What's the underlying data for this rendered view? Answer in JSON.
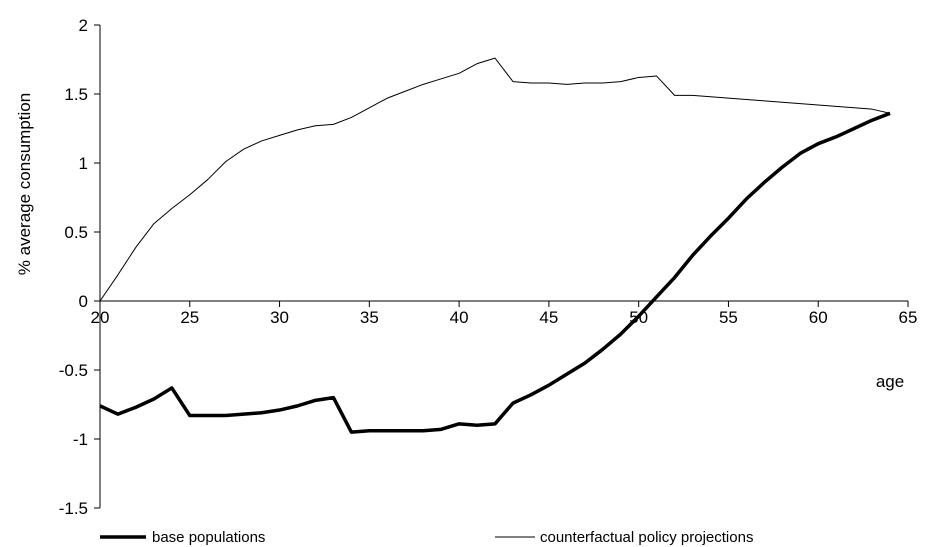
{
  "chart_data": {
    "type": "line",
    "title": "",
    "xlabel": "age",
    "ylabel": "% average consumption",
    "xlim": [
      20,
      65
    ],
    "ylim": [
      -1.5,
      2
    ],
    "x_ticks": [
      "20",
      "25",
      "30",
      "35",
      "40",
      "45",
      "50",
      "55",
      "60",
      "65"
    ],
    "y_ticks": [
      "-1.5",
      "-1",
      "-0.5",
      "0",
      "0.5",
      "1",
      "1.5",
      "2"
    ],
    "grid": false,
    "legend_position": "bottom",
    "series": [
      {
        "name": "base populations",
        "color": "#000000",
        "style": "thick",
        "points": [
          [
            20,
            -0.76
          ],
          [
            21,
            -0.82
          ],
          [
            22,
            -0.77
          ],
          [
            23,
            -0.71
          ],
          [
            24,
            -0.63
          ],
          [
            25,
            -0.83
          ],
          [
            26,
            -0.83
          ],
          [
            27,
            -0.83
          ],
          [
            28,
            -0.82
          ],
          [
            29,
            -0.81
          ],
          [
            30,
            -0.79
          ],
          [
            31,
            -0.76
          ],
          [
            32,
            -0.72
          ],
          [
            33,
            -0.7
          ],
          [
            34,
            -0.95
          ],
          [
            35,
            -0.94
          ],
          [
            36,
            -0.94
          ],
          [
            37,
            -0.94
          ],
          [
            38,
            -0.94
          ],
          [
            39,
            -0.93
          ],
          [
            40,
            -0.89
          ],
          [
            41,
            -0.9
          ],
          [
            42,
            -0.89
          ],
          [
            43,
            -0.74
          ],
          [
            44,
            -0.68
          ],
          [
            45,
            -0.61
          ],
          [
            46,
            -0.53
          ],
          [
            47,
            -0.45
          ],
          [
            48,
            -0.35
          ],
          [
            49,
            -0.24
          ],
          [
            50,
            -0.11
          ],
          [
            51,
            0.03
          ],
          [
            52,
            0.17
          ],
          [
            53,
            0.33
          ],
          [
            54,
            0.47
          ],
          [
            55,
            0.6
          ],
          [
            56,
            0.74
          ],
          [
            57,
            0.86
          ],
          [
            58,
            0.97
          ],
          [
            59,
            1.07
          ],
          [
            60,
            1.14
          ],
          [
            61,
            1.19
          ],
          [
            62,
            1.25
          ],
          [
            63,
            1.31
          ],
          [
            64,
            1.36
          ]
        ]
      },
      {
        "name": "counterfactual policy projections",
        "color": "#000000",
        "style": "thin",
        "points": [
          [
            20,
            0.0
          ],
          [
            21,
            0.19
          ],
          [
            22,
            0.39
          ],
          [
            23,
            0.56
          ],
          [
            24,
            0.67
          ],
          [
            25,
            0.77
          ],
          [
            26,
            0.88
          ],
          [
            27,
            1.01
          ],
          [
            28,
            1.1
          ],
          [
            29,
            1.16
          ],
          [
            30,
            1.2
          ],
          [
            31,
            1.24
          ],
          [
            32,
            1.27
          ],
          [
            33,
            1.28
          ],
          [
            34,
            1.33
          ],
          [
            35,
            1.4
          ],
          [
            36,
            1.47
          ],
          [
            37,
            1.52
          ],
          [
            38,
            1.57
          ],
          [
            39,
            1.61
          ],
          [
            40,
            1.65
          ],
          [
            41,
            1.72
          ],
          [
            42,
            1.76
          ],
          [
            43,
            1.59
          ],
          [
            44,
            1.58
          ],
          [
            45,
            1.58
          ],
          [
            46,
            1.57
          ],
          [
            47,
            1.58
          ],
          [
            48,
            1.58
          ],
          [
            49,
            1.59
          ],
          [
            50,
            1.62
          ],
          [
            51,
            1.63
          ],
          [
            52,
            1.49
          ],
          [
            53,
            1.49
          ],
          [
            54,
            1.48
          ],
          [
            55,
            1.47
          ],
          [
            56,
            1.46
          ],
          [
            57,
            1.45
          ],
          [
            58,
            1.44
          ],
          [
            59,
            1.43
          ],
          [
            60,
            1.42
          ],
          [
            61,
            1.41
          ],
          [
            62,
            1.4
          ],
          [
            63,
            1.39
          ],
          [
            64,
            1.36
          ]
        ]
      }
    ]
  }
}
